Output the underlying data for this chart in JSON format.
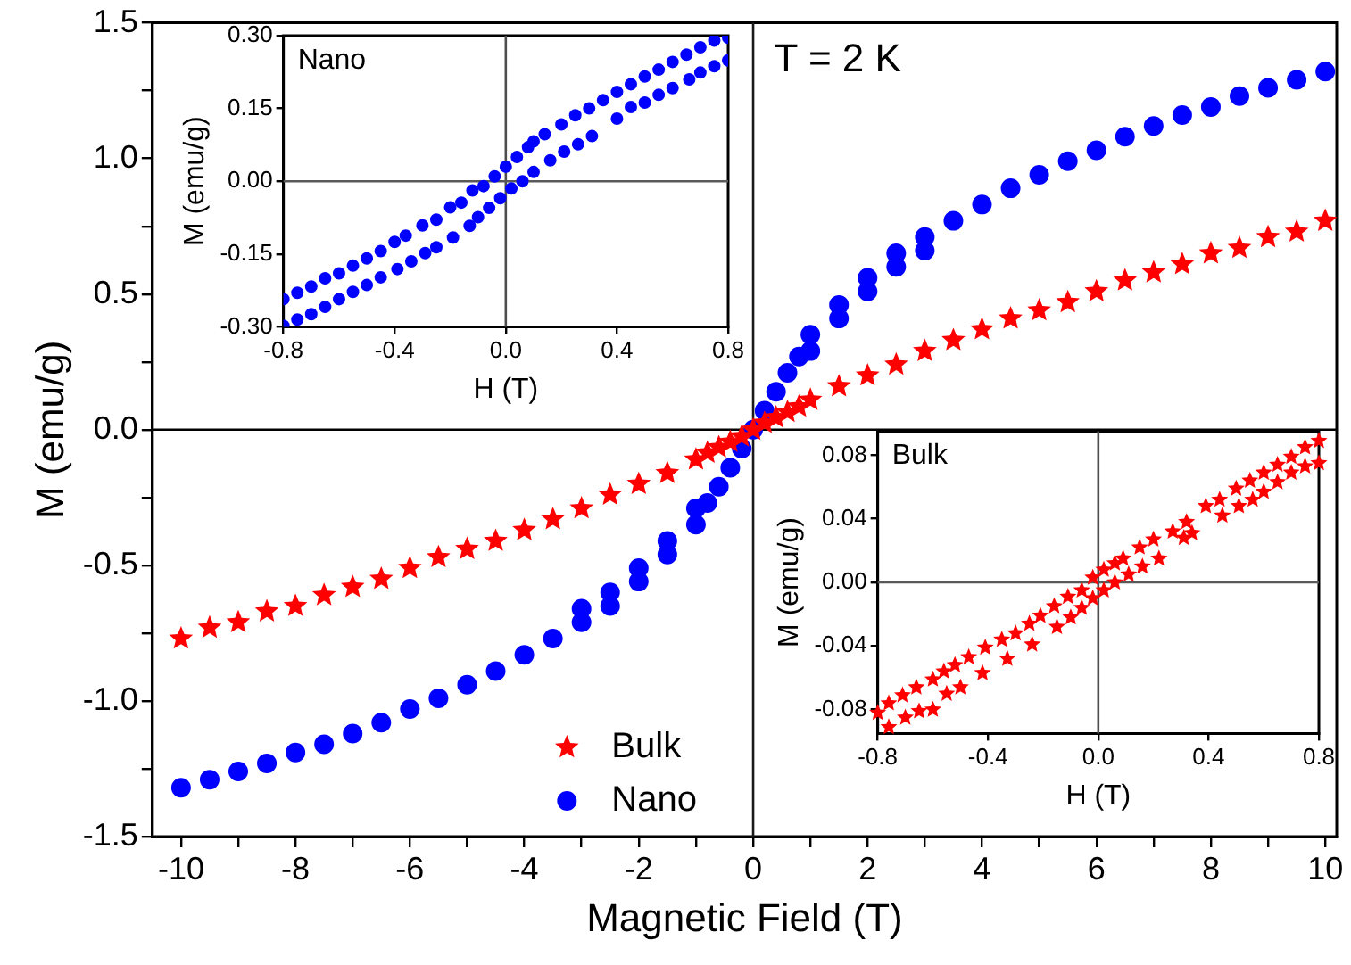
{
  "chart_data": [
    {
      "type": "scatter",
      "xlabel": "Magnetic Field (T)",
      "ylabel": "M (emu/g)",
      "annotations": [
        "T = 2 K"
      ],
      "xlim": [
        -10.5,
        10.2
      ],
      "ylim": [
        -1.5,
        1.5
      ],
      "xticks": [
        -10,
        {
          "value": -9,
          "label": null
        },
        -8,
        {
          "value": -7,
          "label": null
        },
        -6,
        {
          "value": -5,
          "label": null
        },
        -4,
        {
          "value": -3,
          "label": null
        },
        -2,
        {
          "value": -1,
          "label": null
        },
        0,
        {
          "value": 1,
          "label": null
        },
        2,
        {
          "value": 3,
          "label": null
        },
        4,
        {
          "value": 5,
          "label": null
        },
        6,
        {
          "value": 7,
          "label": null
        },
        8,
        {
          "value": 9,
          "label": null
        },
        10
      ],
      "yticks": [
        -1.5,
        {
          "value": -1.25,
          "label": null
        },
        {
          "value": -1,
          "label": "-1.0"
        },
        {
          "value": -0.75,
          "label": null
        },
        -0.5,
        {
          "value": -0.25,
          "label": null
        },
        {
          "value": 0,
          "label": "0.0"
        },
        {
          "value": 0.25,
          "label": null
        },
        0.5,
        {
          "value": 0.75,
          "label": null
        },
        {
          "value": 1,
          "label": "1.0"
        },
        {
          "value": 1.25,
          "label": null
        },
        1.5
      ],
      "ref_lines": [
        {
          "axis": "x",
          "value": 0,
          "color": "#1a1a1a"
        },
        {
          "axis": "y",
          "value": 0,
          "color": "#000000"
        }
      ],
      "legend": "bottom",
      "grid": false,
      "series": [
        {
          "name": "Bulk",
          "color": "#ff0000",
          "marker": "star",
          "x": [
            -10,
            -9.5,
            -9,
            -8.5,
            -8,
            -7.5,
            -7,
            -6.5,
            -6,
            -5.5,
            -5,
            -4.5,
            -4,
            -3.5,
            -3,
            -2.5,
            -2,
            -1.5,
            -1,
            -0.8,
            -0.6,
            -0.4,
            -0.2,
            0,
            0.2,
            0.4,
            0.6,
            0.8,
            1,
            1.5,
            2,
            2.5,
            3,
            3.5,
            4,
            4.5,
            5,
            5.5,
            6,
            6.5,
            7,
            7.5,
            8,
            8.5,
            9,
            9.5,
            10
          ],
          "values": [
            -0.77,
            -0.73,
            -0.71,
            -0.67,
            -0.65,
            -0.61,
            -0.58,
            -0.55,
            -0.51,
            -0.47,
            -0.44,
            -0.41,
            -0.37,
            -0.33,
            -0.29,
            -0.24,
            -0.2,
            -0.16,
            -0.11,
            -0.085,
            -0.065,
            -0.045,
            -0.025,
            0,
            0.025,
            0.045,
            0.065,
            0.085,
            0.11,
            0.16,
            0.2,
            0.24,
            0.29,
            0.33,
            0.37,
            0.41,
            0.44,
            0.47,
            0.51,
            0.55,
            0.58,
            0.61,
            0.65,
            0.67,
            0.71,
            0.73,
            0.77
          ]
        },
        {
          "name": "Nano",
          "color": "#0000ff",
          "marker": "circle",
          "x": [
            -10,
            -9.5,
            -9,
            -8.5,
            -8,
            -7.5,
            -7,
            -6.5,
            -6,
            -5.5,
            -5,
            -4.5,
            -4,
            -3.5,
            -3,
            -3,
            -2.5,
            -2.5,
            -2,
            -2,
            -1.5,
            -1.5,
            -1,
            -1,
            -0.8,
            -0.6,
            -0.4,
            -0.2,
            0,
            0.2,
            0.4,
            0.6,
            0.8,
            1,
            1,
            1.5,
            1.5,
            2,
            2,
            2.5,
            2.5,
            3,
            3,
            3.5,
            4,
            4.5,
            5,
            5.5,
            6,
            6.5,
            7,
            7.5,
            8,
            8.5,
            9,
            9.5,
            10
          ],
          "values": [
            -1.32,
            -1.29,
            -1.26,
            -1.23,
            -1.19,
            -1.16,
            -1.12,
            -1.08,
            -1.03,
            -0.99,
            -0.94,
            -0.89,
            -0.83,
            -0.77,
            -0.66,
            -0.71,
            -0.6,
            -0.65,
            -0.51,
            -0.56,
            -0.41,
            -0.46,
            -0.29,
            -0.35,
            -0.27,
            -0.21,
            -0.14,
            -0.07,
            0,
            0.07,
            0.14,
            0.21,
            0.27,
            0.35,
            0.29,
            0.46,
            0.41,
            0.56,
            0.51,
            0.65,
            0.6,
            0.71,
            0.66,
            0.77,
            0.83,
            0.89,
            0.94,
            0.99,
            1.03,
            1.08,
            1.12,
            1.16,
            1.19,
            1.23,
            1.26,
            1.29,
            1.32
          ]
        }
      ]
    },
    {
      "type": "scatter",
      "title": "Nano",
      "xlabel": "H (T)",
      "ylabel": "M (emu/g)",
      "xlim": [
        -0.8,
        0.8
      ],
      "ylim": [
        -0.3,
        0.3
      ],
      "xticks": [
        -0.8,
        -0.4,
        {
          "value": 0,
          "label": "0.0"
        },
        0.4,
        0.8
      ],
      "yticks": [
        {
          "value": -0.3,
          "label": "-0.30"
        },
        -0.15,
        {
          "value": 0,
          "label": "0.00"
        },
        0.15,
        {
          "value": 0.3,
          "label": "0.30"
        }
      ],
      "ref_lines": [
        {
          "axis": "x",
          "value": 0,
          "color": "#4d4d4d"
        },
        {
          "axis": "y",
          "value": 0,
          "color": "#595959"
        }
      ],
      "series": [
        {
          "color": "#0000ff",
          "marker": "circle",
          "x": [
            -0.8,
            -0.75,
            -0.7,
            -0.65,
            -0.6,
            -0.55,
            -0.5,
            -0.45,
            -0.4,
            -0.36,
            -0.3,
            -0.25,
            -0.2,
            -0.16,
            -0.12,
            -0.08,
            -0.04,
            0,
            0.04,
            0.08,
            0.1,
            0.14,
            0.2,
            0.25,
            0.3,
            0.35,
            0.4,
            0.45,
            0.5,
            0.55,
            0.6,
            0.65,
            0.7,
            0.75,
            0.8,
            -0.8,
            -0.75,
            -0.7,
            -0.65,
            -0.6,
            -0.55,
            -0.5,
            -0.45,
            -0.39,
            -0.34,
            -0.29,
            -0.25,
            -0.19,
            -0.13,
            -0.1,
            -0.06,
            -0.02,
            0.02,
            0.06,
            0.1,
            0.16,
            0.21,
            0.26,
            0.31,
            0.4,
            0.45,
            0.5,
            0.55,
            0.6,
            0.66,
            0.7,
            0.75,
            0.8
          ],
          "values": [
            -0.243,
            -0.23,
            -0.217,
            -0.2,
            -0.19,
            -0.174,
            -0.159,
            -0.144,
            -0.125,
            -0.112,
            -0.091,
            -0.079,
            -0.054,
            -0.044,
            -0.019,
            -0.01,
            0.01,
            0.03,
            0.05,
            0.07,
            0.082,
            0.097,
            0.117,
            0.136,
            0.15,
            0.167,
            0.184,
            0.2,
            0.216,
            0.23,
            0.246,
            0.261,
            0.276,
            0.29,
            0.296,
            -0.298,
            -0.285,
            -0.274,
            -0.259,
            -0.243,
            -0.228,
            -0.214,
            -0.198,
            -0.181,
            -0.165,
            -0.148,
            -0.136,
            -0.116,
            -0.092,
            -0.074,
            -0.055,
            -0.035,
            -0.015,
            0,
            0.019,
            0.043,
            0.061,
            0.076,
            0.093,
            0.129,
            0.153,
            0.162,
            0.178,
            0.192,
            0.21,
            0.224,
            0.237,
            0.249
          ]
        }
      ]
    },
    {
      "type": "scatter",
      "title": "Bulk",
      "xlabel": "H (T)",
      "ylabel": "M (emu/g)",
      "xlim": [
        -0.8,
        0.8
      ],
      "ylim": [
        -0.095,
        0.095
      ],
      "xticks": [
        -0.8,
        -0.4,
        {
          "value": 0,
          "label": "0.0"
        },
        0.4,
        0.8
      ],
      "yticks": [
        -0.08,
        -0.04,
        {
          "value": 0,
          "label": "0.00"
        },
        0.04,
        0.08
      ],
      "ref_lines": [
        {
          "axis": "x",
          "value": 0,
          "color": "#4d4d4d"
        },
        {
          "axis": "y",
          "value": 0,
          "color": "#595959"
        }
      ],
      "series": [
        {
          "color": "#ff0000",
          "marker": "star",
          "x": [
            -0.76,
            -0.71,
            -0.66,
            -0.6,
            -0.56,
            -0.52,
            -0.47,
            -0.41,
            -0.35,
            -0.3,
            -0.25,
            -0.21,
            -0.16,
            -0.11,
            -0.06,
            -0.02,
            0.02,
            0.06,
            0.09,
            0.15,
            0.2,
            0.27,
            0.32,
            0.39,
            0.44,
            0.5,
            0.55,
            0.6,
            0.65,
            0.7,
            0.75,
            0.8,
            -0.8,
            -0.76,
            -0.7,
            -0.65,
            -0.6,
            -0.55,
            -0.5,
            -0.42,
            -0.33,
            -0.24,
            -0.15,
            -0.1,
            -0.06,
            -0.02,
            0.02,
            0.06,
            0.11,
            0.16,
            0.22,
            0.31,
            0.34,
            0.45,
            0.51,
            0.56,
            0.6,
            0.65,
            0.7,
            0.75,
            0.8
          ],
          "values": [
            -0.076,
            -0.071,
            -0.066,
            -0.061,
            -0.056,
            -0.052,
            -0.047,
            -0.041,
            -0.036,
            -0.032,
            -0.026,
            -0.021,
            -0.015,
            -0.009,
            -0.005,
            0.003,
            0.008,
            0.012,
            0.015,
            0.022,
            0.027,
            0.032,
            0.038,
            0.048,
            0.052,
            0.059,
            0.064,
            0.069,
            0.074,
            0.079,
            0.085,
            0.089,
            -0.082,
            -0.091,
            -0.085,
            -0.081,
            -0.08,
            -0.07,
            -0.066,
            -0.057,
            -0.048,
            -0.039,
            -0.028,
            -0.022,
            -0.016,
            -0.01,
            -0.005,
            0,
            0.005,
            0.01,
            0.015,
            0.028,
            0.031,
            0.042,
            0.048,
            0.052,
            0.057,
            0.063,
            0.069,
            0.073,
            0.075
          ]
        }
      ]
    }
  ]
}
